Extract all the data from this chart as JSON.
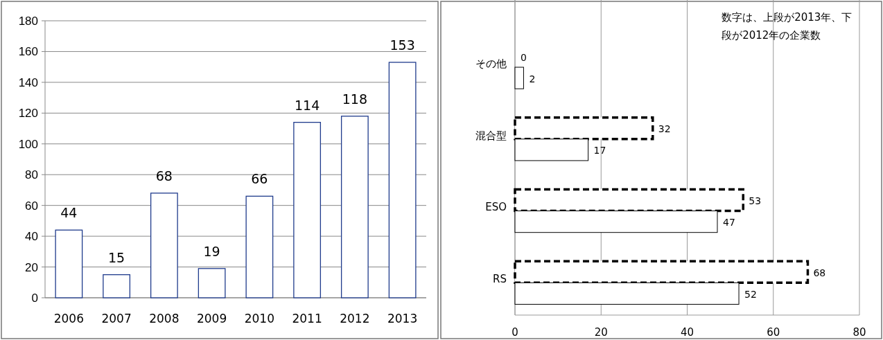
{
  "chart_data": [
    {
      "type": "bar",
      "categories": [
        "2006",
        "2007",
        "2008",
        "2009",
        "2010",
        "2011",
        "2012",
        "2013"
      ],
      "values": [
        44,
        15,
        68,
        19,
        66,
        114,
        118,
        153
      ],
      "color": "#1f3b8c",
      "ylim": [
        0,
        180
      ],
      "yticks": [
        0,
        20,
        40,
        60,
        80,
        100,
        120,
        140,
        160,
        180
      ],
      "grid": "y",
      "data_labels": true
    },
    {
      "type": "bar",
      "orientation": "horizontal",
      "categories": [
        "その他",
        "混合型",
        "ESO",
        "RS"
      ],
      "series": [
        {
          "color": "#000000",
          "line_style": "dashed",
          "values": [
            0,
            32,
            53,
            68
          ]
        },
        {
          "color": "#000000",
          "line_style": "solid",
          "values": [
            2,
            17,
            47,
            52
          ]
        }
      ],
      "xlim": [
        0,
        80
      ],
      "xticks": [
        0,
        20,
        40,
        60,
        80
      ],
      "grid": "x",
      "data_labels": true,
      "annotations": [
        "数字は、上段が2013年、下段が2012年の企業数"
      ]
    }
  ]
}
